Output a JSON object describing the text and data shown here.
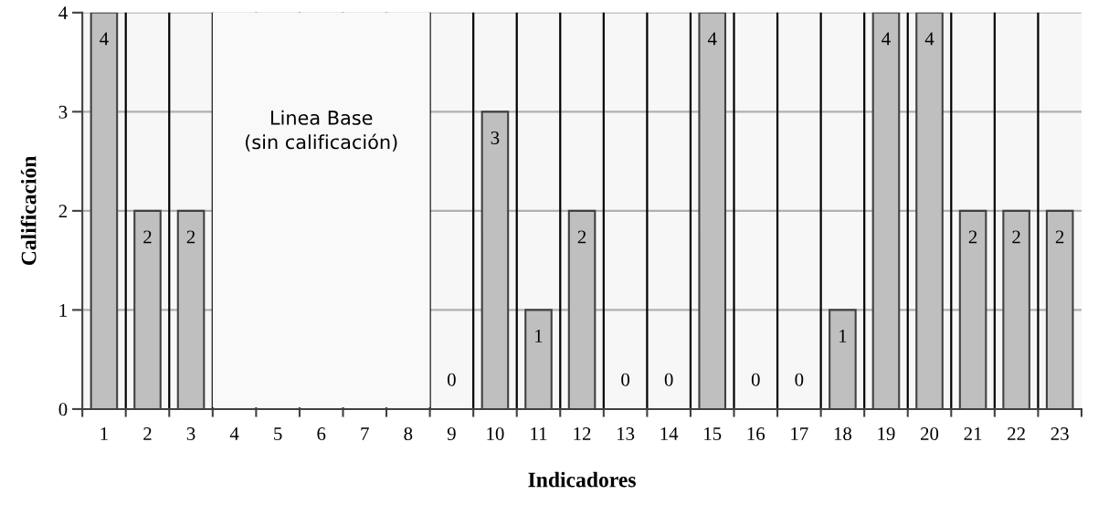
{
  "chart_data": {
    "type": "bar",
    "xlabel": "Indicadores",
    "ylabel": "Calificación",
    "categories": [
      "1",
      "2",
      "3",
      "4",
      "5",
      "6",
      "7",
      "8",
      "9",
      "10",
      "11",
      "12",
      "13",
      "14",
      "15",
      "16",
      "17",
      "18",
      "19",
      "20",
      "21",
      "22",
      "23"
    ],
    "values": [
      4,
      2,
      2,
      null,
      null,
      null,
      null,
      null,
      0,
      3,
      1,
      2,
      0,
      0,
      4,
      0,
      0,
      1,
      4,
      4,
      2,
      2,
      2
    ],
    "value_labels": [
      "4",
      "2",
      "2",
      null,
      null,
      null,
      null,
      null,
      "0",
      "3",
      "1",
      "2",
      "0",
      "0",
      "4",
      "0",
      "0",
      "1",
      "4",
      "4",
      "2",
      "2",
      "2"
    ],
    "color": "#bfbfbf",
    "ylim": [
      0,
      4
    ],
    "yticks": [
      0,
      1,
      2,
      3,
      4
    ],
    "grid": true,
    "bands": [
      {
        "axis": "x",
        "from": "4",
        "to": "8",
        "label": "Linea Base\n(sin calificación)",
        "color": "#f9f9f9"
      }
    ]
  }
}
